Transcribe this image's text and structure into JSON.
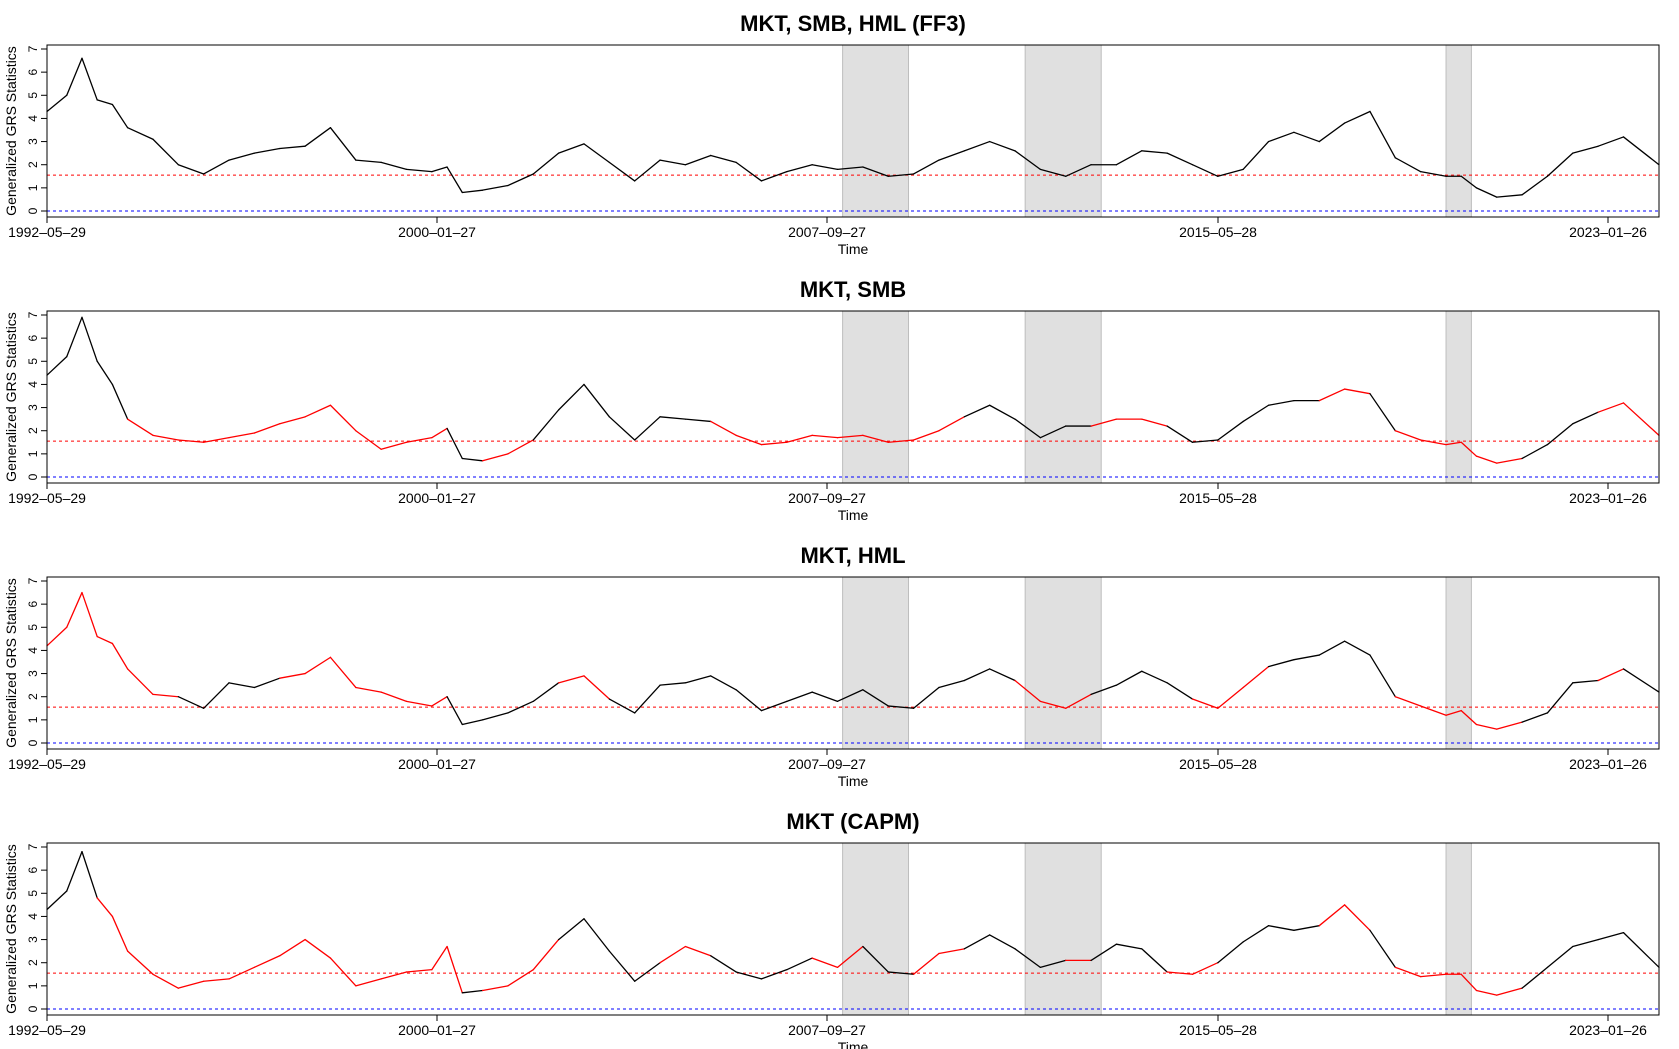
{
  "chart_data": [
    {
      "type": "line",
      "title": "MKT, SMB, HML (FF3)",
      "xlabel": "Time",
      "ylabel": "Generalized GRS Statistics",
      "x_tick_labels": [
        "1992–05–29",
        "2000–01–27",
        "2007–09–27",
        "2015–05–28",
        "2023–01–26"
      ],
      "x_range": [
        1992.41,
        2024.2
      ],
      "ylim": [
        0,
        7
      ],
      "y_ticks": [
        0,
        1,
        2,
        3,
        4,
        5,
        6,
        7
      ],
      "reference_lines": [
        {
          "y": 1.55,
          "color": "#ff0000"
        },
        {
          "y": 0,
          "color": "#0000ff"
        }
      ],
      "shaded_periods": [
        [
          2008.1,
          2009.4
        ],
        [
          2011.7,
          2013.2
        ],
        [
          2020.0,
          2020.5
        ]
      ],
      "series": [
        {
          "color": "#000000",
          "x": [
            1992.41,
            1992.8,
            1993.1,
            1993.4,
            1993.7,
            1994.0,
            1994.5,
            1995.0,
            1995.5,
            1996.0,
            1996.5,
            1997.0,
            1997.5,
            1998.0,
            1998.5,
            1999.0,
            1999.5,
            2000.0,
            2000.3,
            2000.6,
            2001.0,
            2001.5,
            2002.0,
            2002.5,
            2003.0,
            2003.5,
            2004.0,
            2004.5,
            2005.0,
            2005.5,
            2006.0,
            2006.5,
            2007.0,
            2007.5,
            2008.0,
            2008.5,
            2009.0,
            2009.5,
            2010.0,
            2010.5,
            2011.0,
            2011.5,
            2012.0,
            2012.5,
            2013.0,
            2013.5,
            2014.0,
            2014.5,
            2015.0,
            2015.5,
            2016.0,
            2016.5,
            2017.0,
            2017.5,
            2018.0,
            2018.5,
            2019.0,
            2019.5,
            2020.0,
            2020.3,
            2020.6,
            2021.0,
            2021.5,
            2022.0,
            2022.5,
            2023.0,
            2023.5,
            2024.2
          ],
          "y": [
            4.3,
            5.0,
            6.6,
            4.8,
            4.6,
            3.6,
            3.1,
            2.0,
            1.6,
            2.2,
            2.5,
            2.7,
            2.8,
            3.6,
            2.2,
            2.1,
            1.8,
            1.7,
            1.9,
            0.8,
            0.9,
            1.1,
            1.6,
            2.5,
            2.9,
            2.1,
            1.3,
            2.2,
            2.0,
            2.4,
            2.1,
            1.3,
            1.7,
            2.0,
            1.8,
            1.9,
            1.5,
            1.6,
            2.2,
            2.6,
            3.0,
            2.6,
            1.8,
            1.5,
            2.0,
            2.0,
            2.6,
            2.5,
            2.0,
            1.5,
            1.8,
            3.0,
            3.4,
            3.0,
            3.8,
            4.3,
            2.3,
            1.7,
            1.5,
            1.5,
            1.0,
            0.6,
            0.7,
            1.5,
            2.5,
            2.8,
            3.2,
            2.0
          ]
        }
      ]
    },
    {
      "type": "line",
      "title": "MKT, SMB",
      "xlabel": "Time",
      "ylabel": "Generalized GRS Statistics",
      "x_tick_labels": [
        "1992–05–29",
        "2000–01–27",
        "2007–09–27",
        "2015–05–28",
        "2023–01–26"
      ],
      "x_range": [
        1992.41,
        2024.2
      ],
      "ylim": [
        0,
        7
      ],
      "y_ticks": [
        0,
        1,
        2,
        3,
        4,
        5,
        6,
        7
      ],
      "reference_lines": [
        {
          "y": 1.55,
          "color": "#ff0000"
        },
        {
          "y": 0,
          "color": "#0000ff"
        }
      ],
      "shaded_periods": [
        [
          2008.1,
          2009.4
        ],
        [
          2011.7,
          2013.2
        ],
        [
          2020.0,
          2020.5
        ]
      ],
      "series": [
        {
          "colors": [
            "#000000",
            "#ff0000"
          ],
          "x": [
            1992.41,
            1992.8,
            1993.1,
            1993.4,
            1993.7,
            1994.0,
            1994.5,
            1995.0,
            1995.5,
            1996.0,
            1996.5,
            1997.0,
            1997.5,
            1998.0,
            1998.5,
            1999.0,
            1999.5,
            2000.0,
            2000.3,
            2000.6,
            2001.0,
            2001.5,
            2002.0,
            2002.5,
            2003.0,
            2003.5,
            2004.0,
            2004.5,
            2005.0,
            2005.5,
            2006.0,
            2006.5,
            2007.0,
            2007.5,
            2008.0,
            2008.5,
            2009.0,
            2009.5,
            2010.0,
            2010.5,
            2011.0,
            2011.5,
            2012.0,
            2012.5,
            2013.0,
            2013.5,
            2014.0,
            2014.5,
            2015.0,
            2015.5,
            2016.0,
            2016.5,
            2017.0,
            2017.5,
            2018.0,
            2018.5,
            2019.0,
            2019.5,
            2020.0,
            2020.3,
            2020.6,
            2021.0,
            2021.5,
            2022.0,
            2022.5,
            2023.0,
            2023.5,
            2024.2
          ],
          "y": [
            4.4,
            5.2,
            6.9,
            5.0,
            4.0,
            2.5,
            1.8,
            1.6,
            1.5,
            1.7,
            1.9,
            2.3,
            2.6,
            3.1,
            2.0,
            1.2,
            1.5,
            1.7,
            2.1,
            0.8,
            0.7,
            1.0,
            1.6,
            2.9,
            4.0,
            2.6,
            1.6,
            2.6,
            2.5,
            2.4,
            1.8,
            1.4,
            1.5,
            1.8,
            1.7,
            1.8,
            1.5,
            1.6,
            2.0,
            2.6,
            3.1,
            2.5,
            1.7,
            2.2,
            2.2,
            2.5,
            2.5,
            2.2,
            1.5,
            1.6,
            2.4,
            3.1,
            3.3,
            3.3,
            3.8,
            3.6,
            2.0,
            1.6,
            1.4,
            1.5,
            0.9,
            0.6,
            0.8,
            1.4,
            2.3,
            2.8,
            3.2,
            1.8
          ],
          "red": [
            false,
            false,
            false,
            false,
            false,
            true,
            true,
            true,
            true,
            true,
            true,
            true,
            true,
            true,
            true,
            true,
            true,
            true,
            false,
            false,
            true,
            true,
            false,
            false,
            false,
            false,
            false,
            false,
            false,
            true,
            true,
            true,
            true,
            true,
            true,
            true,
            true,
            true,
            true,
            false,
            false,
            false,
            false,
            false,
            true,
            true,
            true,
            false,
            false,
            false,
            false,
            false,
            false,
            true,
            true,
            false,
            true,
            true,
            true,
            true,
            true,
            true,
            false,
            false,
            false,
            true,
            true,
            true
          ]
        }
      ]
    },
    {
      "type": "line",
      "title": "MKT, HML",
      "xlabel": "Time",
      "ylabel": "Generalized GRS Statistics",
      "x_tick_labels": [
        "1992–05–29",
        "2000–01–27",
        "2007–09–27",
        "2015–05–28",
        "2023–01–26"
      ],
      "x_range": [
        1992.41,
        2024.2
      ],
      "ylim": [
        0,
        7
      ],
      "y_ticks": [
        0,
        1,
        2,
        3,
        4,
        5,
        6,
        7
      ],
      "reference_lines": [
        {
          "y": 1.55,
          "color": "#ff0000"
        },
        {
          "y": 0,
          "color": "#0000ff"
        }
      ],
      "shaded_periods": [
        [
          2008.1,
          2009.4
        ],
        [
          2011.7,
          2013.2
        ],
        [
          2020.0,
          2020.5
        ]
      ],
      "series": [
        {
          "colors": [
            "#000000",
            "#ff0000"
          ],
          "x": [
            1992.41,
            1992.8,
            1993.1,
            1993.4,
            1993.7,
            1994.0,
            1994.5,
            1995.0,
            1995.5,
            1996.0,
            1996.5,
            1997.0,
            1997.5,
            1998.0,
            1998.5,
            1999.0,
            1999.5,
            2000.0,
            2000.3,
            2000.6,
            2001.0,
            2001.5,
            2002.0,
            2002.5,
            2003.0,
            2003.5,
            2004.0,
            2004.5,
            2005.0,
            2005.5,
            2006.0,
            2006.5,
            2007.0,
            2007.5,
            2008.0,
            2008.5,
            2009.0,
            2009.5,
            2010.0,
            2010.5,
            2011.0,
            2011.5,
            2012.0,
            2012.5,
            2013.0,
            2013.5,
            2014.0,
            2014.5,
            2015.0,
            2015.5,
            2016.0,
            2016.5,
            2017.0,
            2017.5,
            2018.0,
            2018.5,
            2019.0,
            2019.5,
            2020.0,
            2020.3,
            2020.6,
            2021.0,
            2021.5,
            2022.0,
            2022.5,
            2023.0,
            2023.5,
            2024.2
          ],
          "y": [
            4.2,
            5.0,
            6.5,
            4.6,
            4.3,
            3.2,
            2.1,
            2.0,
            1.5,
            2.6,
            2.4,
            2.8,
            3.0,
            3.7,
            2.4,
            2.2,
            1.8,
            1.6,
            2.0,
            0.8,
            1.0,
            1.3,
            1.8,
            2.6,
            2.9,
            1.9,
            1.3,
            2.5,
            2.6,
            2.9,
            2.3,
            1.4,
            1.8,
            2.2,
            1.8,
            2.3,
            1.6,
            1.5,
            2.4,
            2.7,
            3.2,
            2.7,
            1.8,
            1.5,
            2.1,
            2.5,
            3.1,
            2.6,
            1.9,
            1.5,
            2.4,
            3.3,
            3.6,
            3.8,
            4.4,
            3.8,
            2.0,
            1.6,
            1.2,
            1.4,
            0.8,
            0.6,
            0.9,
            1.3,
            2.6,
            2.7,
            3.2,
            2.2
          ],
          "red": [
            true,
            true,
            true,
            true,
            true,
            true,
            true,
            false,
            false,
            false,
            false,
            true,
            true,
            true,
            true,
            true,
            true,
            true,
            false,
            false,
            false,
            false,
            false,
            true,
            true,
            false,
            false,
            false,
            false,
            false,
            false,
            false,
            false,
            false,
            false,
            false,
            false,
            false,
            false,
            false,
            false,
            true,
            true,
            true,
            false,
            false,
            false,
            false,
            true,
            true,
            true,
            false,
            false,
            false,
            false,
            false,
            true,
            true,
            true,
            true,
            true,
            true,
            false,
            false,
            false,
            true,
            false,
            false
          ]
        }
      ]
    },
    {
      "type": "line",
      "title": "MKT (CAPM)",
      "xlabel": "Time",
      "ylabel": "Generalized GRS Statistics",
      "x_tick_labels": [
        "1992–05–29",
        "2000–01–27",
        "2007–09–27",
        "2015–05–28",
        "2023–01–26"
      ],
      "x_range": [
        1992.41,
        2024.2
      ],
      "ylim": [
        0,
        7
      ],
      "y_ticks": [
        0,
        1,
        2,
        3,
        4,
        5,
        6,
        7
      ],
      "reference_lines": [
        {
          "y": 1.55,
          "color": "#ff0000"
        },
        {
          "y": 0,
          "color": "#0000ff"
        }
      ],
      "shaded_periods": [
        [
          2008.1,
          2009.4
        ],
        [
          2011.7,
          2013.2
        ],
        [
          2020.0,
          2020.5
        ]
      ],
      "series": [
        {
          "colors": [
            "#000000",
            "#ff0000"
          ],
          "x": [
            1992.41,
            1992.8,
            1993.1,
            1993.4,
            1993.7,
            1994.0,
            1994.5,
            1995.0,
            1995.5,
            1996.0,
            1996.5,
            1997.0,
            1997.5,
            1998.0,
            1998.5,
            1999.0,
            1999.5,
            2000.0,
            2000.3,
            2000.6,
            2001.0,
            2001.5,
            2002.0,
            2002.5,
            2003.0,
            2003.5,
            2004.0,
            2004.5,
            2005.0,
            2005.5,
            2006.0,
            2006.5,
            2007.0,
            2007.5,
            2008.0,
            2008.5,
            2009.0,
            2009.5,
            2010.0,
            2010.5,
            2011.0,
            2011.5,
            2012.0,
            2012.5,
            2013.0,
            2013.5,
            2014.0,
            2014.5,
            2015.0,
            2015.5,
            2016.0,
            2016.5,
            2017.0,
            2017.5,
            2018.0,
            2018.5,
            2019.0,
            2019.5,
            2020.0,
            2020.3,
            2020.6,
            2021.0,
            2021.5,
            2022.0,
            2022.5,
            2023.0,
            2023.5,
            2024.2
          ],
          "y": [
            4.3,
            5.1,
            6.8,
            4.8,
            4.0,
            2.5,
            1.5,
            0.9,
            1.2,
            1.3,
            1.8,
            2.3,
            3.0,
            2.2,
            1.0,
            1.3,
            1.6,
            1.7,
            2.7,
            0.7,
            0.8,
            1.0,
            1.7,
            3.0,
            3.9,
            2.5,
            1.2,
            2.0,
            2.7,
            2.3,
            1.6,
            1.3,
            1.7,
            2.2,
            1.8,
            2.7,
            1.6,
            1.5,
            2.4,
            2.6,
            3.2,
            2.6,
            1.8,
            2.1,
            2.1,
            2.8,
            2.6,
            1.6,
            1.5,
            2.0,
            2.9,
            3.6,
            3.4,
            3.6,
            4.5,
            3.4,
            1.8,
            1.4,
            1.5,
            1.5,
            0.8,
            0.6,
            0.9,
            1.8,
            2.7,
            3.0,
            3.3,
            1.8
          ],
          "red": [
            false,
            false,
            false,
            true,
            true,
            true,
            true,
            true,
            true,
            true,
            true,
            true,
            true,
            true,
            true,
            true,
            true,
            true,
            true,
            false,
            true,
            true,
            true,
            false,
            false,
            false,
            false,
            true,
            true,
            false,
            false,
            false,
            false,
            true,
            true,
            false,
            false,
            true,
            true,
            false,
            false,
            false,
            false,
            true,
            false,
            false,
            false,
            true,
            true,
            false,
            false,
            false,
            false,
            true,
            true,
            false,
            true,
            true,
            true,
            true,
            true,
            true,
            false,
            false,
            false,
            false,
            false,
            true
          ]
        }
      ]
    }
  ]
}
